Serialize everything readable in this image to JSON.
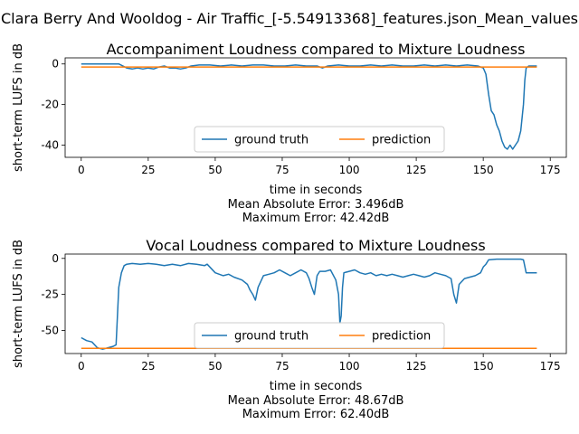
{
  "figure": {
    "suptitle": "Clara Berry And Wooldog - Air Traffic_[-5.54913368]_features.json_Mean_values"
  },
  "colors": {
    "ground_truth": "#1f77b4",
    "prediction": "#ff7f0e",
    "axes": "#000000",
    "legend_border": "#cccccc"
  },
  "chart_data": [
    {
      "type": "line",
      "title": "Accompaniment Loudness compared to Mixture Loudness",
      "xlabel": "time in seconds",
      "ylabel": "short-term LUFS in dB",
      "xlim": [
        -6,
        181
      ],
      "ylim": [
        -46,
        3
      ],
      "xticks": [
        0,
        25,
        50,
        75,
        100,
        125,
        150,
        175
      ],
      "yticks": [
        0,
        -20,
        -40
      ],
      "grid": false,
      "legend": {
        "placement": "lower-center",
        "columns": 2
      },
      "footer": [
        "Mean Absolute Error: 3.496dB",
        "Maximum Error: 42.42dB"
      ],
      "series": [
        {
          "name": "ground truth",
          "color": "#1f77b4",
          "x": [
            0,
            5,
            10,
            14,
            17,
            19,
            21,
            23,
            25,
            27,
            29,
            31,
            33,
            35,
            37,
            39,
            41,
            44,
            48,
            52,
            56,
            60,
            64,
            68,
            72,
            76,
            80,
            84,
            88,
            90,
            92,
            96,
            100,
            104,
            108,
            112,
            116,
            120,
            124,
            128,
            132,
            136,
            140,
            144,
            148,
            150,
            151,
            152,
            153,
            154,
            155,
            156,
            157,
            158,
            159,
            160,
            161,
            162,
            163,
            164,
            165,
            165.5,
            166,
            167,
            170
          ],
          "y": [
            0,
            0,
            0,
            0,
            -2,
            -2.5,
            -2,
            -2.5,
            -2,
            -2.5,
            -1.5,
            -1,
            -2,
            -2,
            -2.5,
            -2,
            -1,
            -0.5,
            -0.5,
            -1,
            -0.5,
            -1,
            -0.5,
            -0.5,
            -1,
            -1,
            -0.5,
            -1,
            -1,
            -2,
            -1,
            -0.5,
            -1,
            -1,
            -0.5,
            -1,
            -0.5,
            -1,
            -1,
            -0.5,
            -1,
            -0.5,
            -1,
            -0.5,
            -1,
            -2,
            -5,
            -15,
            -23,
            -25,
            -30,
            -33,
            -38,
            -41,
            -42,
            -40,
            -42,
            -40,
            -38,
            -33,
            -20,
            -8,
            -2,
            -1,
            -1
          ]
        },
        {
          "name": "prediction",
          "color": "#ff7f0e",
          "x": [
            0,
            170
          ],
          "y": [
            -1.5,
            -1.5
          ]
        }
      ]
    },
    {
      "type": "line",
      "title": "Vocal Loudness compared to Mixture Loudness",
      "xlabel": "time in seconds",
      "ylabel": "short-term LUFS in dB",
      "xlim": [
        -6,
        181
      ],
      "ylim": [
        -66,
        3
      ],
      "xticks": [
        0,
        25,
        50,
        75,
        100,
        125,
        150,
        175
      ],
      "yticks": [
        0,
        -25,
        -50
      ],
      "grid": false,
      "legend": {
        "placement": "lower-center",
        "columns": 2
      },
      "footer": [
        "Mean Absolute Error: 48.67dB",
        "Maximum Error: 62.40dB"
      ],
      "series": [
        {
          "name": "ground truth",
          "color": "#1f77b4",
          "x": [
            0,
            2,
            4,
            6,
            8,
            10,
            12,
            13,
            13.5,
            14,
            15,
            16,
            17,
            19,
            22,
            25,
            28,
            31,
            34,
            37,
            40,
            43,
            46,
            47,
            50,
            53,
            55,
            57,
            60,
            62,
            63,
            64,
            65,
            66,
            68,
            70,
            72,
            74,
            76,
            78,
            80,
            82,
            84,
            85,
            86,
            87,
            88,
            89,
            91,
            93,
            95,
            96,
            96.5,
            97,
            97.5,
            98,
            100,
            102,
            104,
            106,
            108,
            110,
            112,
            114,
            116,
            118,
            120,
            122,
            124,
            126,
            128,
            130,
            132,
            134,
            136,
            138,
            139,
            140,
            141,
            143,
            145,
            147,
            149,
            150,
            151,
            152,
            155,
            160,
            164,
            165,
            166,
            170
          ],
          "y": [
            -55,
            -57,
            -58,
            -62,
            -63,
            -62,
            -61,
            -60,
            -40,
            -20,
            -10,
            -5,
            -4,
            -3.5,
            -4,
            -3.5,
            -4,
            -5,
            -4,
            -5,
            -3.5,
            -4,
            -5,
            -4,
            -10,
            -12,
            -11,
            -13,
            -15,
            -18,
            -22,
            -25,
            -29,
            -20,
            -12,
            -11,
            -10,
            -8,
            -10,
            -12,
            -10,
            -8,
            -10,
            -14,
            -20,
            -25,
            -12,
            -9,
            -9,
            -8,
            -15,
            -25,
            -45,
            -40,
            -20,
            -10,
            -9,
            -8,
            -10,
            -11,
            -10,
            -12,
            -11,
            -12,
            -11,
            -12,
            -13,
            -12,
            -11,
            -12,
            -13,
            -12,
            -10,
            -11,
            -12,
            -14,
            -25,
            -31,
            -18,
            -14,
            -13,
            -12,
            -10,
            -6,
            -4,
            -1,
            -0.5,
            -0.5,
            -0.5,
            -1,
            -10,
            -10
          ]
        },
        {
          "name": "prediction",
          "color": "#ff7f0e",
          "x": [
            0,
            170
          ],
          "y": [
            -62.4,
            -62.4
          ]
        }
      ]
    }
  ]
}
